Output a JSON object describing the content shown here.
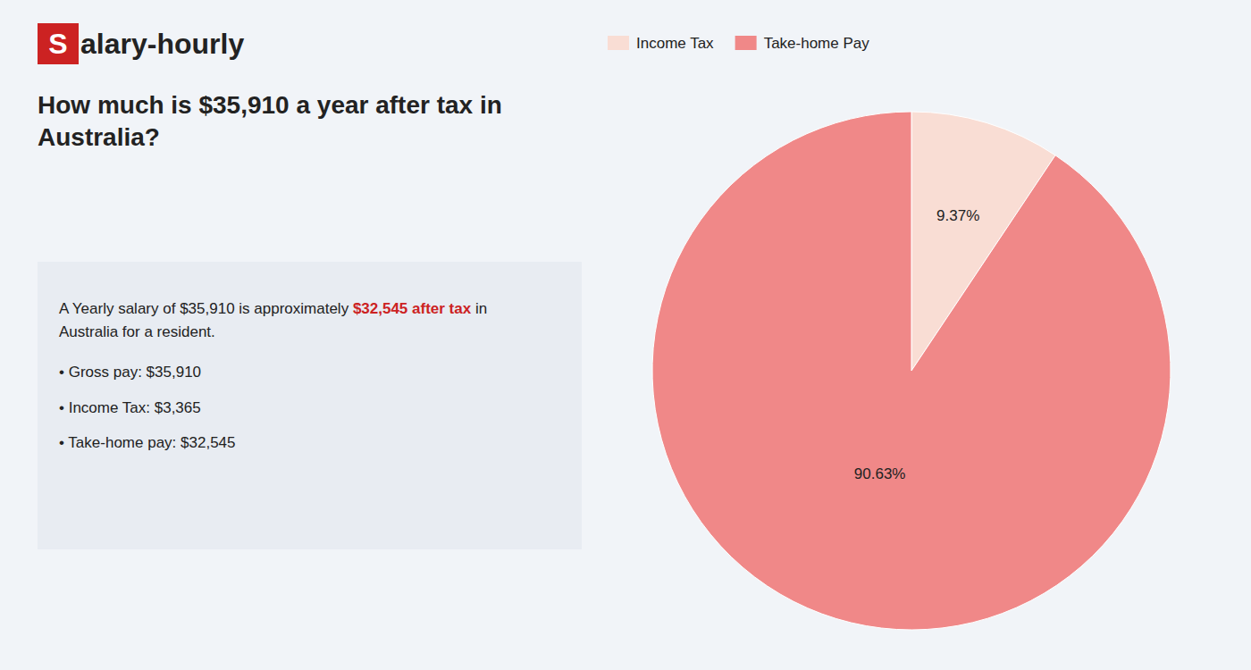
{
  "chart_data": {
    "type": "pie",
    "title": "How much is $35,910 a year after tax in\nAustralia?",
    "categories": [
      "Income Tax",
      "Take-home Pay"
    ],
    "values": [
      9.37,
      90.63
    ],
    "value_labels": [
      "9.37%",
      "90.63%"
    ],
    "colors": [
      "#f9ddd4",
      "#f08888"
    ],
    "data_labels": true,
    "legend": "top-left",
    "annotations": [
      "S",
      "alary-hourly",
      "A Yearly salary of $35,910 is approximately",
      "$32,545 after tax",
      "in",
      "Australia for a resident.",
      "• Gross pay: $35,910",
      "• Income Tax: $3,365",
      "• Take-home pay: $32,545"
    ]
  }
}
